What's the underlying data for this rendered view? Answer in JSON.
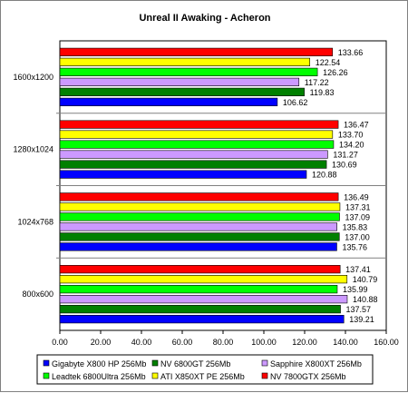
{
  "chart_data": {
    "type": "bar",
    "orientation": "horizontal",
    "title": "Unreal II Awaking - Acheron",
    "xlabel": "",
    "ylabel": "",
    "xlim": [
      0,
      160
    ],
    "x_ticks": [
      "0.00",
      "20.00",
      "40.00",
      "60.00",
      "80.00",
      "100.00",
      "120.00",
      "140.00",
      "160.00"
    ],
    "grid": false,
    "legend_position": "bottom",
    "categories": [
      "1600x1200",
      "1280x1024",
      "1024x768",
      "800x600"
    ],
    "series": [
      {
        "name": "NV 7800GTX 256Mb",
        "color": "#ff0000",
        "values": [
          133.66,
          136.47,
          136.49,
          137.41
        ]
      },
      {
        "name": "ATI X850XT PE 256Mb",
        "color": "#ffff00",
        "values": [
          122.54,
          133.7,
          137.31,
          140.79
        ]
      },
      {
        "name": "Leadtek 6800Ultra 256Mb",
        "color": "#00ff00",
        "values": [
          126.26,
          134.2,
          137.09,
          135.99
        ]
      },
      {
        "name": "Sapphire X800XT 256Mb",
        "color": "#cc99ff",
        "values": [
          117.22,
          131.27,
          135.83,
          140.88
        ]
      },
      {
        "name": "NV 6800GT 256Mb",
        "color": "#008000",
        "values": [
          119.83,
          130.69,
          137.0,
          137.57
        ]
      },
      {
        "name": "Gigabyte X800 HP 256Mb",
        "color": "#0000ff",
        "values": [
          106.62,
          120.88,
          135.76,
          139.21
        ]
      }
    ],
    "value_labels": [
      [
        "133.66",
        "122.54",
        "126.26",
        "117.22",
        "119.83",
        "106.62"
      ],
      [
        "136.47",
        "133.70",
        "134.20",
        "131.27",
        "130.69",
        "120.88"
      ],
      [
        "136.49",
        "137.31",
        "137.09",
        "135.83",
        "137.00",
        "135.76"
      ],
      [
        "137.41",
        "140.79",
        "135.99",
        "140.88",
        "137.57",
        "139.21"
      ]
    ],
    "legend_order": [
      5,
      4,
      3,
      2,
      1,
      0
    ],
    "background": "#ffffff",
    "border_color": "#808080"
  }
}
